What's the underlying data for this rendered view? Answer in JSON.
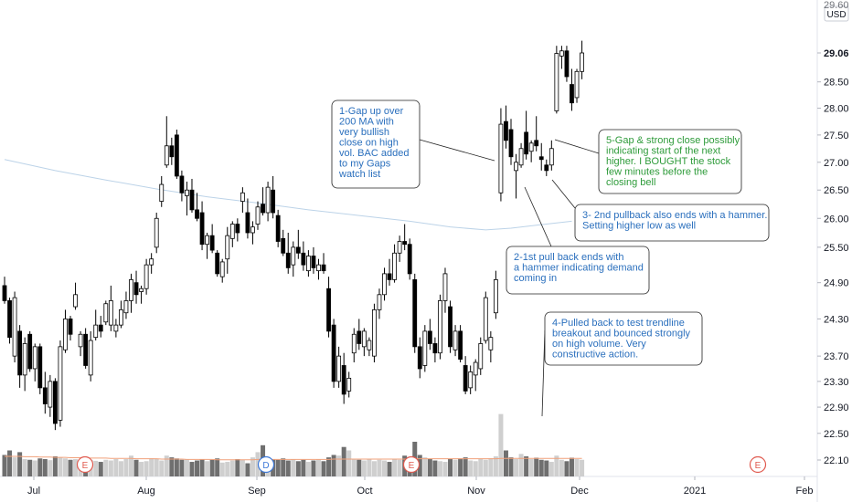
{
  "chart_data": {
    "type": "candlestick",
    "currency": "USD",
    "y_axis": {
      "scale": "log",
      "ticks": [
        "29.06",
        "28.50",
        "28.00",
        "27.50",
        "27.00",
        "26.50",
        "26.00",
        "25.50",
        "24.90",
        "24.30",
        "23.70",
        "23.30",
        "22.90",
        "22.50",
        "22.10"
      ],
      "top_label_partial": "29.60",
      "range": [
        21.9,
        29.7
      ]
    },
    "x_axis": {
      "months": [
        "Jul",
        "Aug",
        "Sep",
        "Oct",
        "Nov",
        "Dec",
        "2021",
        "Feb"
      ]
    },
    "colors": {
      "up_fill": "#ffffff",
      "down_fill": "#000000",
      "candle_border": "#000000",
      "volume_up": "#cfcfcf",
      "volume_down": "#6f6f6f",
      "volume_ma": "#f0a07a",
      "ma200": "#bcd3e8",
      "annotation_blue": "#2a6fbd",
      "annotation_green": "#2e9b3a",
      "earnings_badge": "#e05a4f",
      "dividend_badge": "#3c78d8"
    },
    "candles": [
      {
        "o": 24.85,
        "h": 25.0,
        "l": 24.55,
        "c": 24.6
      },
      {
        "o": 24.6,
        "h": 24.65,
        "l": 23.9,
        "c": 24.0
      },
      {
        "o": 23.7,
        "h": 24.75,
        "l": 23.6,
        "c": 24.65
      },
      {
        "o": 24.1,
        "h": 24.2,
        "l": 23.2,
        "c": 23.4
      },
      {
        "o": 23.4,
        "h": 24.0,
        "l": 23.15,
        "c": 23.9
      },
      {
        "o": 24.05,
        "h": 24.1,
        "l": 23.45,
        "c": 23.5
      },
      {
        "o": 23.5,
        "h": 23.9,
        "l": 23.3,
        "c": 23.85
      },
      {
        "o": 23.85,
        "h": 23.9,
        "l": 23.1,
        "c": 23.2
      },
      {
        "o": 23.2,
        "h": 23.45,
        "l": 22.8,
        "c": 22.95
      },
      {
        "o": 22.9,
        "h": 23.4,
        "l": 22.75,
        "c": 23.3
      },
      {
        "o": 23.3,
        "h": 23.35,
        "l": 22.55,
        "c": 22.65
      },
      {
        "o": 22.7,
        "h": 23.95,
        "l": 22.6,
        "c": 23.85
      },
      {
        "o": 23.8,
        "h": 24.45,
        "l": 23.75,
        "c": 24.3
      },
      {
        "o": 24.3,
        "h": 24.35,
        "l": 23.95,
        "c": 24.05
      },
      {
        "o": 24.5,
        "h": 24.9,
        "l": 24.45,
        "c": 24.7
      },
      {
        "o": 23.85,
        "h": 24.1,
        "l": 23.7,
        "c": 24.05
      },
      {
        "o": 24.05,
        "h": 24.15,
        "l": 23.5,
        "c": 23.55
      },
      {
        "o": 23.4,
        "h": 24.1,
        "l": 23.3,
        "c": 23.95
      },
      {
        "o": 24.0,
        "h": 24.45,
        "l": 23.95,
        "c": 24.2
      },
      {
        "o": 24.2,
        "h": 24.35,
        "l": 24.0,
        "c": 24.1
      },
      {
        "o": 24.25,
        "h": 24.6,
        "l": 24.2,
        "c": 24.55
      },
      {
        "o": 24.2,
        "h": 24.85,
        "l": 24.1,
        "c": 24.6
      },
      {
        "o": 24.1,
        "h": 24.3,
        "l": 24.0,
        "c": 24.2
      },
      {
        "o": 24.2,
        "h": 24.6,
        "l": 24.15,
        "c": 24.45
      },
      {
        "o": 24.4,
        "h": 24.75,
        "l": 24.3,
        "c": 24.6
      },
      {
        "o": 24.6,
        "h": 25.05,
        "l": 24.4,
        "c": 24.95
      },
      {
        "o": 24.9,
        "h": 25.1,
        "l": 24.55,
        "c": 24.7
      },
      {
        "o": 24.75,
        "h": 24.85,
        "l": 24.55,
        "c": 24.8
      },
      {
        "o": 24.8,
        "h": 25.3,
        "l": 24.7,
        "c": 25.2
      },
      {
        "o": 25.2,
        "h": 25.4,
        "l": 25.05,
        "c": 25.3
      },
      {
        "o": 25.5,
        "h": 26.1,
        "l": 25.4,
        "c": 26.0
      },
      {
        "o": 26.3,
        "h": 26.75,
        "l": 26.2,
        "c": 26.6
      },
      {
        "o": 26.95,
        "h": 27.85,
        "l": 26.9,
        "c": 27.3
      },
      {
        "o": 27.3,
        "h": 27.45,
        "l": 26.95,
        "c": 27.1
      },
      {
        "o": 27.5,
        "h": 27.6,
        "l": 26.7,
        "c": 26.75
      },
      {
        "o": 26.75,
        "h": 26.85,
        "l": 26.3,
        "c": 26.45
      },
      {
        "o": 26.4,
        "h": 26.65,
        "l": 26.05,
        "c": 26.5
      },
      {
        "o": 26.5,
        "h": 26.7,
        "l": 26.1,
        "c": 26.15
      },
      {
        "o": 26.15,
        "h": 26.45,
        "l": 25.95,
        "c": 26.0
      },
      {
        "o": 26.1,
        "h": 26.3,
        "l": 25.45,
        "c": 25.55
      },
      {
        "o": 25.55,
        "h": 25.75,
        "l": 25.3,
        "c": 25.7
      },
      {
        "o": 25.7,
        "h": 25.9,
        "l": 25.4,
        "c": 25.45
      },
      {
        "o": 25.4,
        "h": 25.45,
        "l": 25.0,
        "c": 25.05
      },
      {
        "o": 25.0,
        "h": 25.3,
        "l": 24.9,
        "c": 25.25
      },
      {
        "o": 25.3,
        "h": 25.85,
        "l": 25.05,
        "c": 25.7
      },
      {
        "o": 25.65,
        "h": 25.95,
        "l": 25.5,
        "c": 25.9
      },
      {
        "o": 25.9,
        "h": 26.0,
        "l": 25.6,
        "c": 25.75
      },
      {
        "o": 26.3,
        "h": 26.55,
        "l": 26.1,
        "c": 26.45
      },
      {
        "o": 26.1,
        "h": 26.35,
        "l": 25.65,
        "c": 25.75
      },
      {
        "o": 25.75,
        "h": 25.95,
        "l": 25.55,
        "c": 25.85
      },
      {
        "o": 25.9,
        "h": 26.3,
        "l": 25.8,
        "c": 26.2
      },
      {
        "o": 26.25,
        "h": 26.55,
        "l": 26.05,
        "c": 26.1
      },
      {
        "o": 26.1,
        "h": 26.65,
        "l": 25.95,
        "c": 26.55
      },
      {
        "o": 26.5,
        "h": 26.75,
        "l": 26.0,
        "c": 26.1
      },
      {
        "o": 26.05,
        "h": 26.15,
        "l": 25.5,
        "c": 25.6
      },
      {
        "o": 25.65,
        "h": 25.8,
        "l": 25.35,
        "c": 25.4
      },
      {
        "o": 25.4,
        "h": 25.75,
        "l": 25.05,
        "c": 25.15
      },
      {
        "o": 25.2,
        "h": 25.6,
        "l": 25.0,
        "c": 25.5
      },
      {
        "o": 25.5,
        "h": 25.8,
        "l": 25.3,
        "c": 25.4
      },
      {
        "o": 25.4,
        "h": 25.6,
        "l": 25.1,
        "c": 25.2
      },
      {
        "o": 25.1,
        "h": 25.45,
        "l": 25.0,
        "c": 25.35
      },
      {
        "o": 25.35,
        "h": 25.5,
        "l": 25.05,
        "c": 25.15
      },
      {
        "o": 25.1,
        "h": 25.3,
        "l": 24.95,
        "c": 25.2
      },
      {
        "o": 25.2,
        "h": 25.4,
        "l": 25.05,
        "c": 25.1
      },
      {
        "o": 24.8,
        "h": 25.0,
        "l": 24.0,
        "c": 24.1
      },
      {
        "o": 24.2,
        "h": 24.3,
        "l": 23.2,
        "c": 23.3
      },
      {
        "o": 23.3,
        "h": 23.85,
        "l": 23.2,
        "c": 23.7
      },
      {
        "o": 23.55,
        "h": 23.75,
        "l": 22.95,
        "c": 23.1
      },
      {
        "o": 23.15,
        "h": 23.45,
        "l": 23.05,
        "c": 23.35
      },
      {
        "o": 23.75,
        "h": 24.15,
        "l": 23.6,
        "c": 24.05
      },
      {
        "o": 24.1,
        "h": 24.3,
        "l": 23.8,
        "c": 23.9
      },
      {
        "o": 23.85,
        "h": 24.15,
        "l": 23.7,
        "c": 24.1
      },
      {
        "o": 23.8,
        "h": 24.0,
        "l": 23.7,
        "c": 23.95
      },
      {
        "o": 23.7,
        "h": 24.55,
        "l": 23.6,
        "c": 24.45
      },
      {
        "o": 24.45,
        "h": 24.8,
        "l": 24.3,
        "c": 24.7
      },
      {
        "o": 24.7,
        "h": 25.15,
        "l": 24.6,
        "c": 25.05
      },
      {
        "o": 25.05,
        "h": 25.3,
        "l": 24.85,
        "c": 24.95
      },
      {
        "o": 24.95,
        "h": 25.55,
        "l": 24.9,
        "c": 25.4
      },
      {
        "o": 25.4,
        "h": 25.7,
        "l": 25.25,
        "c": 25.6
      },
      {
        "o": 25.6,
        "h": 25.9,
        "l": 25.45,
        "c": 25.55
      },
      {
        "o": 25.55,
        "h": 25.65,
        "l": 24.95,
        "c": 25.05
      },
      {
        "o": 24.95,
        "h": 25.05,
        "l": 23.75,
        "c": 23.85
      },
      {
        "o": 23.85,
        "h": 24.0,
        "l": 23.35,
        "c": 23.5
      },
      {
        "o": 23.55,
        "h": 24.2,
        "l": 23.45,
        "c": 24.1
      },
      {
        "o": 24.1,
        "h": 24.3,
        "l": 23.8,
        "c": 23.9
      },
      {
        "o": 23.9,
        "h": 24.0,
        "l": 23.6,
        "c": 23.75
      },
      {
        "o": 23.75,
        "h": 24.7,
        "l": 23.65,
        "c": 24.6
      },
      {
        "o": 24.6,
        "h": 25.15,
        "l": 24.4,
        "c": 25.05
      },
      {
        "o": 24.5,
        "h": 24.6,
        "l": 23.75,
        "c": 23.85
      },
      {
        "o": 23.8,
        "h": 24.2,
        "l": 23.7,
        "c": 24.1
      },
      {
        "o": 24.1,
        "h": 24.2,
        "l": 23.6,
        "c": 23.65
      },
      {
        "o": 23.55,
        "h": 23.7,
        "l": 23.1,
        "c": 23.15
      },
      {
        "o": 23.2,
        "h": 23.55,
        "l": 23.1,
        "c": 23.45
      },
      {
        "o": 23.4,
        "h": 23.65,
        "l": 23.15,
        "c": 23.6
      },
      {
        "o": 23.5,
        "h": 24.0,
        "l": 23.4,
        "c": 23.9
      },
      {
        "o": 23.95,
        "h": 24.75,
        "l": 23.9,
        "c": 24.65
      },
      {
        "o": 23.8,
        "h": 24.1,
        "l": 23.6,
        "c": 24.0
      },
      {
        "o": 24.4,
        "h": 25.1,
        "l": 24.3,
        "c": 24.95
      },
      {
        "o": 26.45,
        "h": 28.0,
        "l": 26.3,
        "c": 27.7
      },
      {
        "o": 27.75,
        "h": 28.05,
        "l": 27.25,
        "c": 27.4
      },
      {
        "o": 27.6,
        "h": 27.8,
        "l": 26.95,
        "c": 27.1
      },
      {
        "o": 26.85,
        "h": 27.15,
        "l": 26.35,
        "c": 27.0
      },
      {
        "o": 26.95,
        "h": 27.35,
        "l": 26.9,
        "c": 27.25
      },
      {
        "o": 27.55,
        "h": 27.95,
        "l": 27.05,
        "c": 27.15
      },
      {
        "o": 27.2,
        "h": 27.4,
        "l": 27.0,
        "c": 27.35
      },
      {
        "o": 27.4,
        "h": 27.85,
        "l": 27.2,
        "c": 27.3
      },
      {
        "o": 27.1,
        "h": 27.35,
        "l": 26.85,
        "c": 27.05
      },
      {
        "o": 26.95,
        "h": 27.05,
        "l": 26.75,
        "c": 26.85
      },
      {
        "o": 26.95,
        "h": 27.4,
        "l": 26.85,
        "c": 27.25
      },
      {
        "o": 27.95,
        "h": 29.2,
        "l": 27.9,
        "c": 29.05
      },
      {
        "o": 29.0,
        "h": 29.2,
        "l": 28.75,
        "c": 29.1
      },
      {
        "o": 29.1,
        "h": 29.2,
        "l": 28.5,
        "c": 28.6
      },
      {
        "o": 28.45,
        "h": 28.75,
        "l": 27.95,
        "c": 28.1
      },
      {
        "o": 28.2,
        "h": 28.75,
        "l": 28.1,
        "c": 28.7
      },
      {
        "o": 28.7,
        "h": 29.3,
        "l": 28.55,
        "c": 29.06
      }
    ],
    "volumes": [
      0.62,
      0.75,
      0.55,
      0.7,
      0.5,
      0.48,
      0.46,
      0.52,
      0.5,
      0.47,
      0.58,
      0.55,
      0.52,
      0.48,
      0.5,
      0.46,
      0.55,
      0.48,
      0.45,
      0.42,
      0.48,
      0.46,
      0.5,
      0.44,
      0.5,
      0.6,
      0.48,
      0.42,
      0.44,
      0.52,
      0.5,
      0.46,
      0.6,
      0.55,
      0.52,
      0.48,
      0.5,
      0.42,
      0.46,
      0.5,
      0.44,
      0.48,
      0.52,
      0.4,
      0.42,
      0.46,
      0.5,
      0.48,
      0.38,
      0.55,
      0.7,
      0.9,
      0.55,
      0.5,
      0.48,
      0.52,
      0.46,
      0.5,
      0.44,
      0.48,
      0.42,
      0.46,
      0.5,
      0.44,
      0.55,
      0.62,
      0.6,
      0.85,
      0.75,
      0.5,
      0.48,
      0.46,
      0.5,
      0.44,
      0.48,
      0.46,
      0.42,
      0.5,
      0.48,
      0.6,
      0.55,
      1.0,
      0.62,
      0.55,
      0.5,
      0.46,
      0.44,
      0.42,
      0.5,
      0.48,
      0.52,
      0.55,
      0.46,
      0.44,
      0.5,
      0.48,
      0.52,
      0.58,
      1.8,
      0.75,
      0.55,
      0.5,
      0.65,
      0.58,
      0.5,
      0.54,
      0.48,
      0.46,
      0.42,
      0.6,
      0.48,
      0.44,
      0.54,
      0.5,
      0.48
    ],
    "volume_ma": [
      0.58,
      0.58,
      0.58,
      0.58,
      0.57,
      0.57,
      0.57,
      0.56,
      0.56,
      0.56,
      0.55,
      0.55,
      0.55,
      0.54,
      0.54,
      0.54,
      0.54,
      0.53,
      0.53,
      0.53,
      0.53,
      0.52,
      0.52,
      0.52,
      0.52,
      0.52,
      0.51,
      0.51,
      0.51,
      0.51,
      0.51,
      0.5,
      0.5,
      0.5,
      0.5,
      0.5,
      0.49,
      0.49,
      0.49,
      0.49,
      0.49,
      0.49,
      0.48,
      0.48,
      0.48,
      0.48,
      0.48,
      0.48,
      0.48,
      0.48,
      0.49,
      0.49,
      0.49,
      0.49,
      0.49,
      0.49,
      0.49,
      0.49,
      0.49,
      0.49,
      0.49,
      0.49,
      0.49,
      0.49,
      0.49,
      0.5,
      0.5,
      0.5,
      0.5,
      0.5,
      0.5,
      0.5,
      0.5,
      0.5,
      0.5,
      0.5,
      0.5,
      0.5,
      0.5,
      0.5,
      0.5,
      0.51,
      0.51,
      0.51,
      0.51,
      0.51,
      0.51,
      0.51,
      0.51,
      0.51,
      0.51,
      0.51,
      0.51,
      0.51,
      0.51,
      0.51,
      0.51,
      0.51,
      0.52,
      0.52,
      0.52,
      0.52,
      0.52,
      0.52,
      0.52,
      0.52,
      0.52,
      0.52,
      0.52,
      0.52,
      0.52,
      0.52,
      0.52,
      0.52,
      0.52
    ],
    "ma200": [
      {
        "i": 0,
        "v": 27.05
      },
      {
        "i": 10,
        "v": 26.85
      },
      {
        "i": 20,
        "v": 26.68
      },
      {
        "i": 30,
        "v": 26.52
      },
      {
        "i": 40,
        "v": 26.38
      },
      {
        "i": 50,
        "v": 26.27
      },
      {
        "i": 60,
        "v": 26.15
      },
      {
        "i": 70,
        "v": 26.05
      },
      {
        "i": 80,
        "v": 25.95
      },
      {
        "i": 88,
        "v": 25.85
      },
      {
        "i": 95,
        "v": 25.8
      },
      {
        "i": 100,
        "v": 25.83
      },
      {
        "i": 105,
        "v": 25.88
      },
      {
        "i": 112,
        "v": 25.95
      }
    ],
    "annotations": [
      {
        "id": "1",
        "text": [
          "1-Gap up over",
          "200 MA with",
          "very bullish",
          "close on high",
          "vol. BAC added",
          "to my Gaps",
          "watch list"
        ],
        "color": "blue"
      },
      {
        "id": "2",
        "text": [
          "2-1st pull back ends with",
          "a hammer indicating demand",
          "coming in"
        ],
        "color": "blue"
      },
      {
        "id": "3",
        "text": [
          "3- 2nd pullback also ends with a hammer.",
          "Setting higher low as well"
        ],
        "color": "blue"
      },
      {
        "id": "4",
        "text": [
          "4-Pulled back to test trendline",
          "breakout and bounced strongly",
          "on high volume.  Very",
          "constructive action."
        ],
        "color": "blue"
      },
      {
        "id": "5",
        "text": [
          "5-Gap & strong close possibly",
          "indicating start of the next",
          "higher.  I BOUGHT the stock",
          "few minutes before the",
          "closing bell"
        ],
        "color": "green"
      }
    ],
    "event_badges": [
      {
        "label": "E",
        "kind": "earnings"
      },
      {
        "label": "D",
        "kind": "dividend"
      },
      {
        "label": "E",
        "kind": "earnings"
      },
      {
        "label": "E",
        "kind": "earnings"
      }
    ]
  }
}
